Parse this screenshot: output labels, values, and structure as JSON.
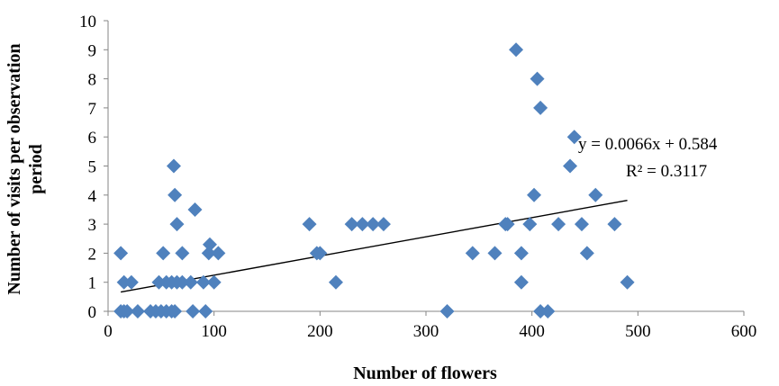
{
  "chart_data": {
    "type": "scatter",
    "xlabel": "Number of flowers",
    "ylabel_line1": "Number of visits per observation",
    "ylabel_line2": "period",
    "xlim": [
      0,
      600
    ],
    "ylim": [
      0,
      10
    ],
    "xticks": [
      0,
      100,
      200,
      300,
      400,
      500,
      600
    ],
    "yticks": [
      0,
      1,
      2,
      3,
      4,
      5,
      6,
      7,
      8,
      9,
      10
    ],
    "grid": false,
    "marker_color": "#4F81BD",
    "trendline_color": "#000000",
    "equation": "y = 0.0066x + 0.584",
    "r_squared": "R² = 0.3117",
    "trendline": {
      "slope": 0.0066,
      "intercept": 0.584,
      "x_range": [
        12,
        490
      ]
    },
    "points": [
      {
        "x": 12,
        "y": 2
      },
      {
        "x": 15,
        "y": 1
      },
      {
        "x": 22,
        "y": 1
      },
      {
        "x": 12,
        "y": 0
      },
      {
        "x": 15,
        "y": 0
      },
      {
        "x": 18,
        "y": 0
      },
      {
        "x": 28,
        "y": 0
      },
      {
        "x": 40,
        "y": 0
      },
      {
        "x": 45,
        "y": 0
      },
      {
        "x": 50,
        "y": 0
      },
      {
        "x": 55,
        "y": 0
      },
      {
        "x": 60,
        "y": 0
      },
      {
        "x": 63,
        "y": 0
      },
      {
        "x": 80,
        "y": 0
      },
      {
        "x": 92,
        "y": 0
      },
      {
        "x": 48,
        "y": 1
      },
      {
        "x": 52,
        "y": 2
      },
      {
        "x": 55,
        "y": 1
      },
      {
        "x": 60,
        "y": 1
      },
      {
        "x": 65,
        "y": 1
      },
      {
        "x": 70,
        "y": 1
      },
      {
        "x": 78,
        "y": 1
      },
      {
        "x": 62,
        "y": 5
      },
      {
        "x": 63,
        "y": 4
      },
      {
        "x": 65,
        "y": 3
      },
      {
        "x": 70,
        "y": 2
      },
      {
        "x": 82,
        "y": 3.5
      },
      {
        "x": 90,
        "y": 1
      },
      {
        "x": 95,
        "y": 2
      },
      {
        "x": 96,
        "y": 2.3
      },
      {
        "x": 100,
        "y": 1
      },
      {
        "x": 104,
        "y": 2
      },
      {
        "x": 190,
        "y": 3
      },
      {
        "x": 197,
        "y": 2
      },
      {
        "x": 200,
        "y": 2
      },
      {
        "x": 215,
        "y": 1
      },
      {
        "x": 230,
        "y": 3
      },
      {
        "x": 240,
        "y": 3
      },
      {
        "x": 250,
        "y": 3
      },
      {
        "x": 260,
        "y": 3
      },
      {
        "x": 320,
        "y": 0
      },
      {
        "x": 344,
        "y": 2
      },
      {
        "x": 365,
        "y": 2
      },
      {
        "x": 375,
        "y": 3
      },
      {
        "x": 377,
        "y": 3
      },
      {
        "x": 385,
        "y": 9
      },
      {
        "x": 390,
        "y": 1
      },
      {
        "x": 390,
        "y": 2
      },
      {
        "x": 398,
        "y": 3
      },
      {
        "x": 402,
        "y": 4
      },
      {
        "x": 405,
        "y": 8
      },
      {
        "x": 408,
        "y": 7
      },
      {
        "x": 408,
        "y": 0
      },
      {
        "x": 415,
        "y": 0
      },
      {
        "x": 425,
        "y": 3
      },
      {
        "x": 436,
        "y": 5
      },
      {
        "x": 440,
        "y": 6
      },
      {
        "x": 447,
        "y": 3
      },
      {
        "x": 452,
        "y": 2
      },
      {
        "x": 460,
        "y": 4
      },
      {
        "x": 478,
        "y": 3
      },
      {
        "x": 490,
        "y": 1
      }
    ]
  }
}
